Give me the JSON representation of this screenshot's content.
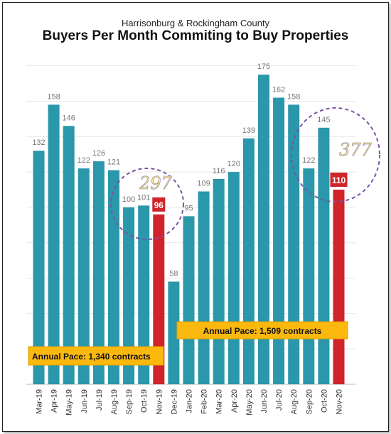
{
  "chart_data": {
    "type": "bar",
    "subtitle": "Harrisonburg & Rockingham County",
    "title": "Buyers Per Month Commiting to Buy Properties",
    "categories": [
      "Mar-19",
      "Apr-19",
      "May-19",
      "Jun-19",
      "Jul-19",
      "Aug-19",
      "Sep-19",
      "Oct-19",
      "Nov-19",
      "Dec-19",
      "Jan-20",
      "Feb-20",
      "Mar-20",
      "Apr-20",
      "May-20",
      "Jun-20",
      "Jul-20",
      "Aug-20",
      "Sep-20",
      "Oct-20",
      "Nov-20"
    ],
    "values": [
      132,
      158,
      146,
      122,
      126,
      121,
      100,
      101,
      96,
      58,
      95,
      109,
      116,
      120,
      139,
      175,
      162,
      158,
      122,
      145,
      110
    ],
    "highlighted": [
      "Nov-19",
      "Nov-20"
    ],
    "ylim": [
      0,
      190
    ],
    "grid": true,
    "colors": {
      "bar": "#2a97ab",
      "highlight": "#d0232a",
      "pace_box": "#fbb80e",
      "circle": "#7b52a8",
      "handwriting_fill": "#fbe88a"
    },
    "annotations": [
      {
        "label": "Annual Pace: 1,340 contracts"
      },
      {
        "label": "Annual Pace: 1,509 contracts"
      },
      {
        "label": "297"
      },
      {
        "label": "377"
      }
    ]
  }
}
